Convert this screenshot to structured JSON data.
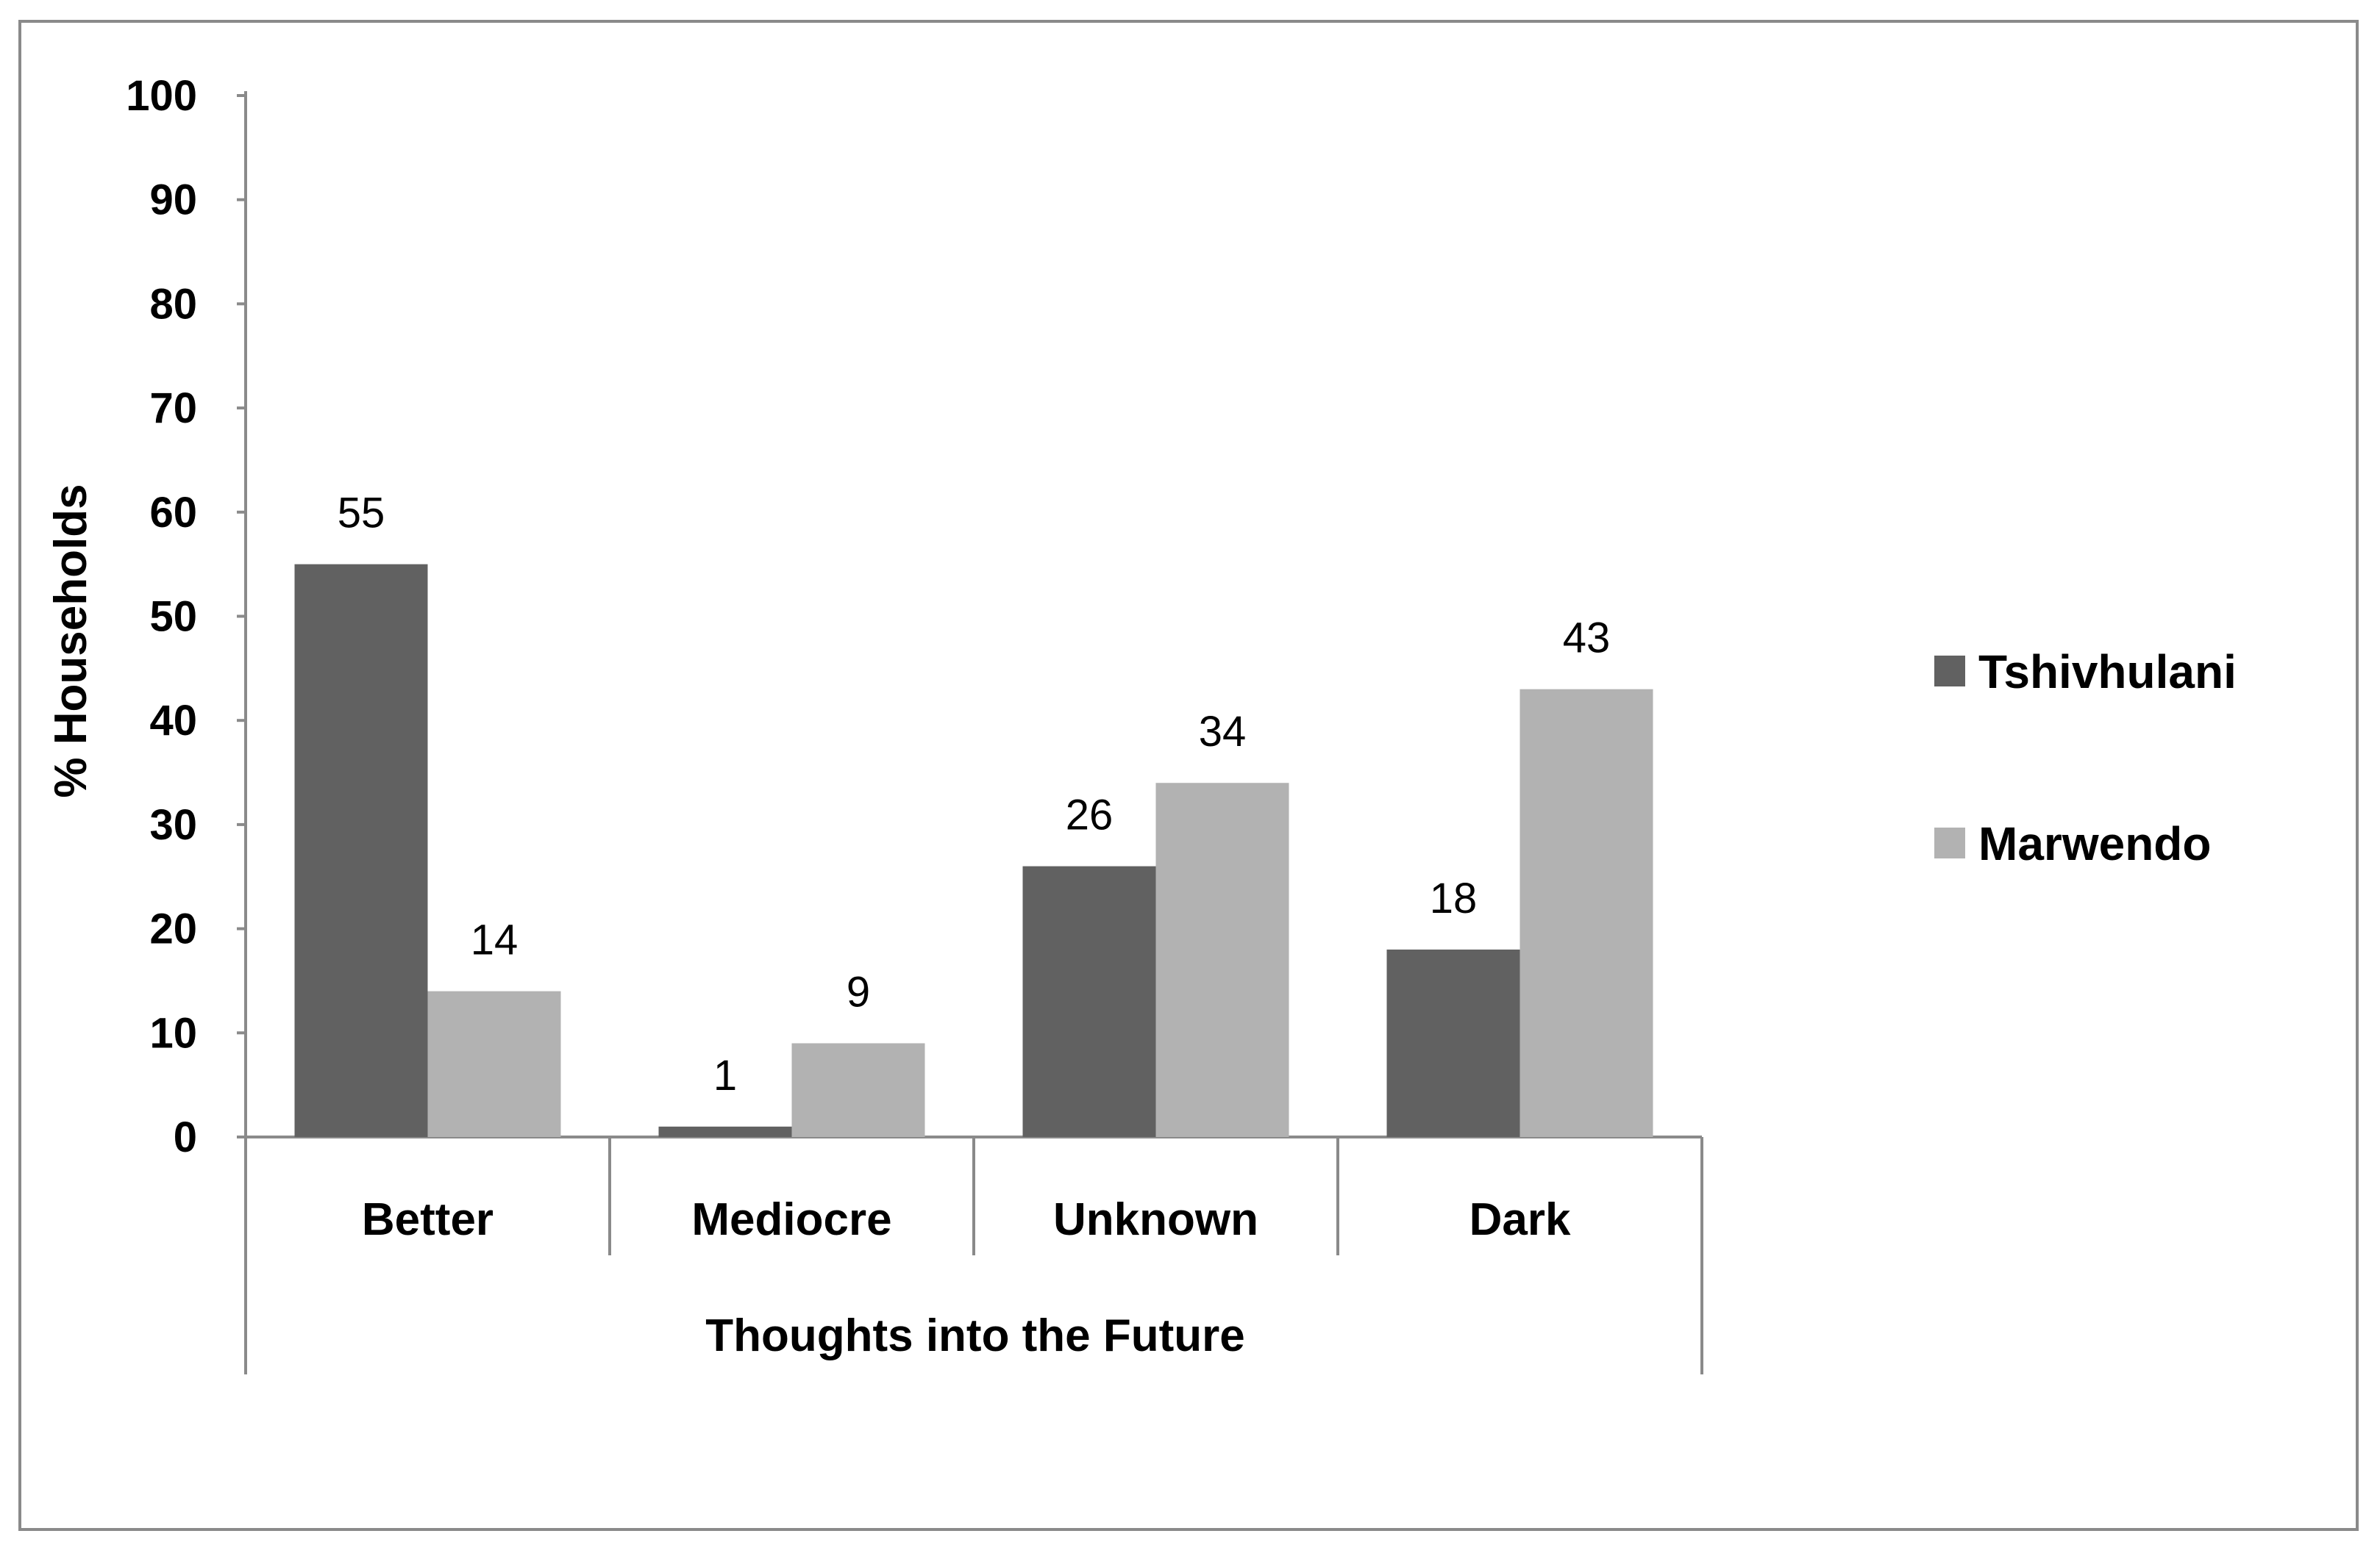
{
  "chart_data": {
    "type": "bar",
    "title": "",
    "xlabel": "Thoughts into the Future",
    "ylabel": "% Households",
    "categories": [
      "Better",
      "Mediocre",
      "Unknown",
      "Dark"
    ],
    "series": [
      {
        "name": "Tshivhulani",
        "values": [
          55,
          1,
          26,
          18
        ],
        "color": "#616161"
      },
      {
        "name": "Marwendo",
        "values": [
          14,
          9,
          34,
          43
        ],
        "color": "#b2b2b2"
      }
    ],
    "ylim": [
      0,
      100
    ],
    "yticks": [
      "0",
      "10",
      "20",
      "30",
      "40",
      "50",
      "60",
      "70",
      "80",
      "90",
      "100"
    ],
    "grid": false,
    "legend_position": "right",
    "data_labels": true
  }
}
